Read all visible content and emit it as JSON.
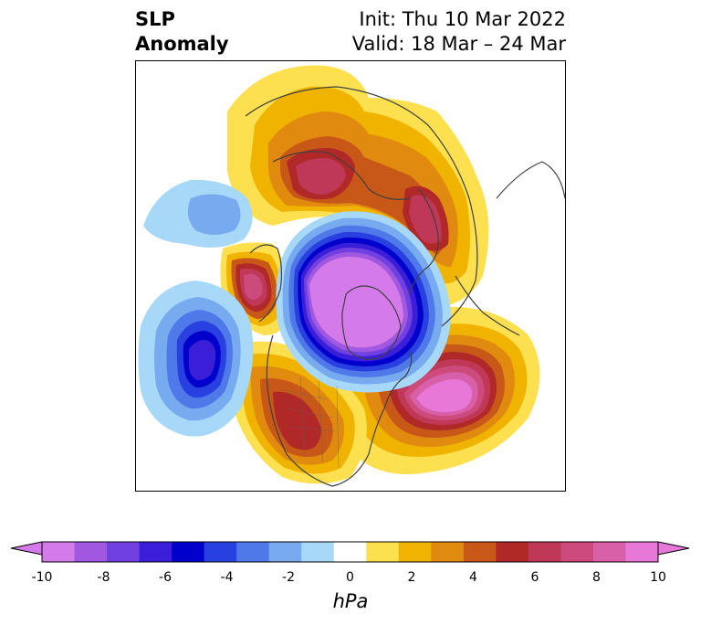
{
  "title": {
    "left_line1": "SLP",
    "left_line2": "Anomaly",
    "right_line1": "Init: Thu 10 Mar 2022",
    "right_line2": "Valid: 18 Mar – 24 Mar"
  },
  "colorbar": {
    "unit": "hPa",
    "ticks": [
      "-10",
      "-8",
      "-6",
      "-4",
      "-2",
      "0",
      "2",
      "4",
      "6",
      "8",
      "10"
    ],
    "bins": [
      {
        "value": -9.5,
        "color": "#d57aea"
      },
      {
        "value": -8.5,
        "color": "#a058e0"
      },
      {
        "value": -7.5,
        "color": "#7040e0"
      },
      {
        "value": -6.5,
        "color": "#3a1ed8"
      },
      {
        "value": -5.5,
        "color": "#0000cc"
      },
      {
        "value": -4.5,
        "color": "#2840e0"
      },
      {
        "value": -3.5,
        "color": "#4f78e8"
      },
      {
        "value": -2.5,
        "color": "#78aaf0"
      },
      {
        "value": -1.5,
        "color": "#a8d8f8"
      },
      {
        "value": 0,
        "color": "#ffffff"
      },
      {
        "value": 1.5,
        "color": "#fce050"
      },
      {
        "value": 2.5,
        "color": "#f0b400"
      },
      {
        "value": 3.5,
        "color": "#e08a10"
      },
      {
        "value": 4.5,
        "color": "#c85818"
      },
      {
        "value": 5.5,
        "color": "#b02828"
      },
      {
        "value": 6.5,
        "color": "#c03858"
      },
      {
        "value": 7.5,
        "color": "#cc4a7c"
      },
      {
        "value": 8.5,
        "color": "#d860a8"
      },
      {
        "value": 9.5,
        "color": "#e878d8"
      }
    ],
    "extend": "both"
  },
  "map": {
    "projection": "north-polar-stereographic",
    "field": "sea level pressure anomaly",
    "anomaly_centers": [
      {
        "region": "north-pole-arctic-ocean",
        "sign": "negative",
        "peak_hpa": -10
      },
      {
        "region": "north-atlantic",
        "sign": "positive",
        "peak_hpa": 10
      },
      {
        "region": "north-pacific",
        "sign": "negative",
        "peak_hpa": -6
      },
      {
        "region": "eastern-siberia",
        "sign": "positive",
        "peak_hpa": 8
      },
      {
        "region": "scandinavia-northwest-russia",
        "sign": "positive",
        "peak_hpa": 8
      },
      {
        "region": "gulf-of-alaska",
        "sign": "positive",
        "peak_hpa": 8
      },
      {
        "region": "central-pacific",
        "sign": "negative",
        "peak_hpa": -4
      },
      {
        "region": "united-states",
        "sign": "positive",
        "peak_hpa": 6
      }
    ]
  }
}
